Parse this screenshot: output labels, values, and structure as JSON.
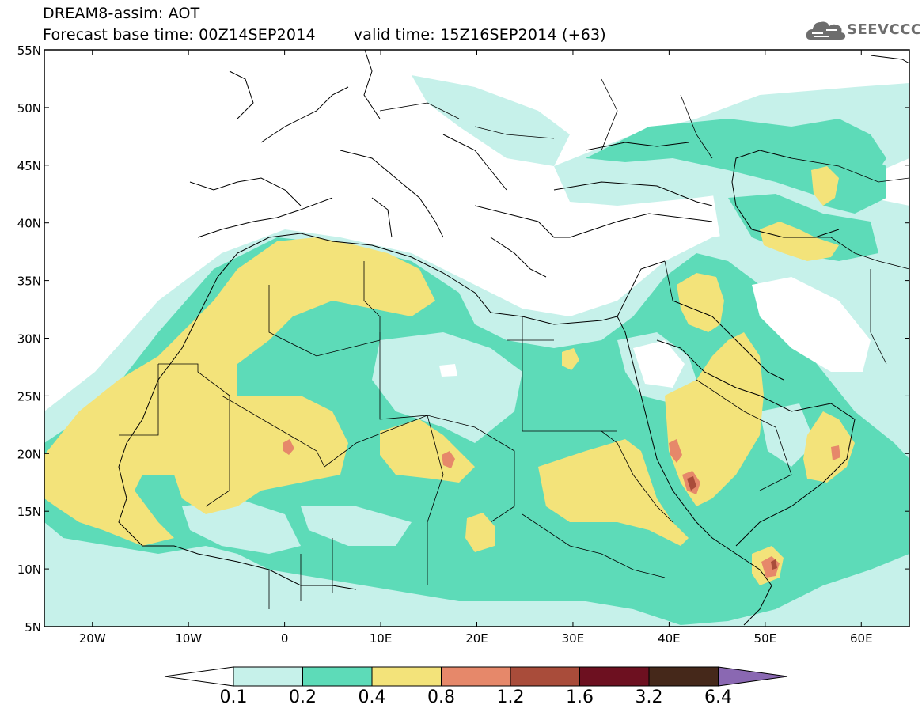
{
  "header": {
    "line1": "DREAM8-assim: AOT",
    "forecast_base": "Forecast base time: 00Z14SEP2014",
    "valid_time": "valid time: 15Z16SEP2014 (+63)"
  },
  "logo": {
    "text": "SEEVCCC",
    "icon": "cloud-logo-icon"
  },
  "map": {
    "lon_range": [
      -25,
      65
    ],
    "lat_range": [
      5,
      55
    ],
    "lat_ticks": [
      "55N",
      "50N",
      "45N",
      "40N",
      "35N",
      "30N",
      "25N",
      "20N",
      "15N",
      "10N",
      "5N"
    ],
    "lon_ticks": [
      "20W",
      "10W",
      "0",
      "10E",
      "20E",
      "30E",
      "40E",
      "50E",
      "60E"
    ]
  },
  "colorbar": {
    "labels": [
      "0.1",
      "0.2",
      "0.4",
      "0.8",
      "1.2",
      "1.6",
      "3.2",
      "6.4"
    ],
    "colors": [
      "#c6f1ea",
      "#5ddbb8",
      "#f3e37a",
      "#e6886a",
      "#a94c3a",
      "#6d1020",
      "#45281a",
      "#8a68b2"
    ],
    "under_color": "#ffffff"
  }
}
